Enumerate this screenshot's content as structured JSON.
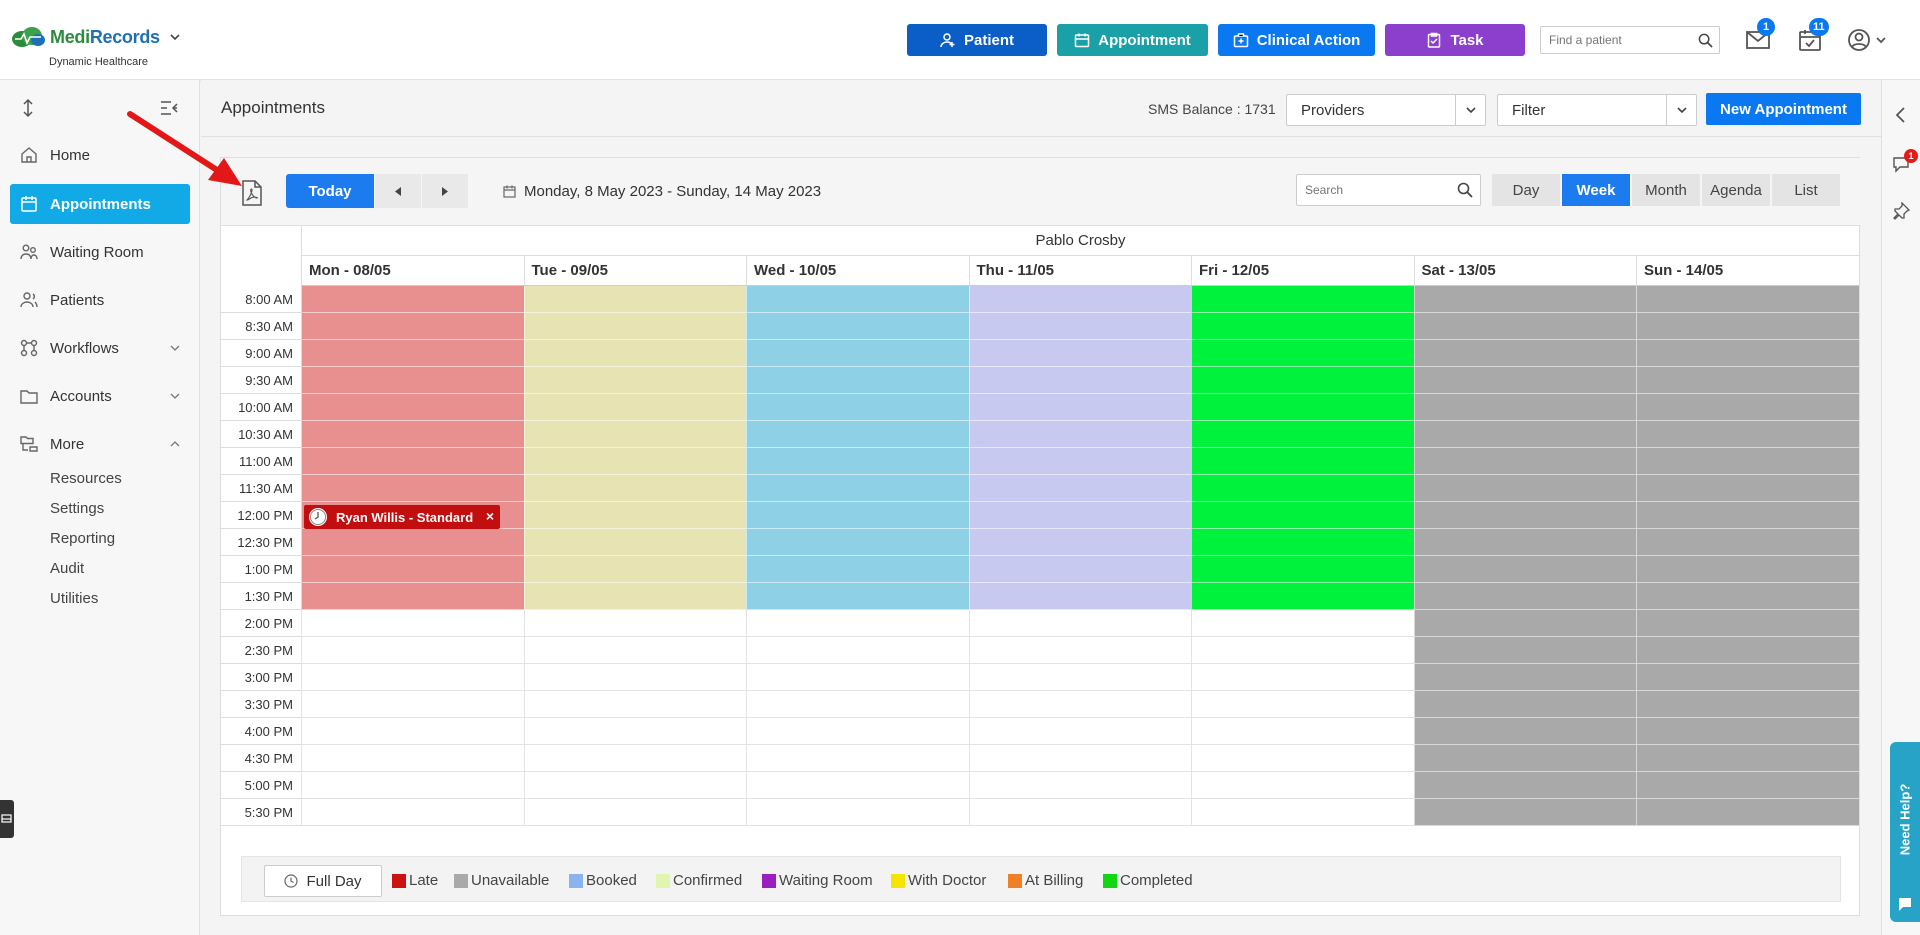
{
  "brand": {
    "name_a": "Medi",
    "name_b": "Records",
    "subtitle": "Dynamic Healthcare"
  },
  "header": {
    "buttons": {
      "patient": "Patient",
      "appointment": "Appointment",
      "clinical_action": "Clinical Action",
      "task": "Task"
    },
    "find_patient_placeholder": "Find a patient",
    "mail_badge": "1",
    "tasks_badge": "11"
  },
  "sidebar": {
    "items": [
      "Home",
      "Appointments",
      "Waiting Room",
      "Patients",
      "Workflows",
      "Accounts",
      "More"
    ],
    "more_sub": [
      "Resources",
      "Settings",
      "Reporting",
      "Audit",
      "Utilities"
    ]
  },
  "page": {
    "title": "Appointments",
    "sms_balance": "SMS Balance : 1731",
    "providers": "Providers",
    "filter": "Filter",
    "new_appointment": "New Appointment"
  },
  "toolbar": {
    "today": "Today",
    "date_range": "Monday, 8 May 2023 - Sunday, 14 May 2023",
    "search_placeholder": "Search",
    "views": [
      "Day",
      "Week",
      "Month",
      "Agenda",
      "List"
    ],
    "active_view": "Week"
  },
  "calendar": {
    "provider": "Pablo Crosby",
    "days": [
      {
        "label": "Mon - 08/05",
        "color": "#e89090",
        "slots_colored": 12
      },
      {
        "label": "Tue - 09/05",
        "color": "#e7e3b2",
        "slots_colored": 12
      },
      {
        "label": "Wed - 10/05",
        "color": "#8ed0e5",
        "slots_colored": 12
      },
      {
        "label": "Thu - 11/05",
        "color": "#c7c9f1",
        "slots_colored": 12
      },
      {
        "label": "Fri - 12/05",
        "color": "#00f23c",
        "slots_colored": 12
      },
      {
        "label": "Sat - 13/05",
        "color": "#a9a9a9",
        "slots_colored": 20
      },
      {
        "label": "Sun - 14/05",
        "color": "#a9a9a9",
        "slots_colored": 20
      }
    ],
    "times": [
      "8:00 AM",
      "8:30 AM",
      "9:00 AM",
      "9:30 AM",
      "10:00 AM",
      "10:30 AM",
      "11:00 AM",
      "11:30 AM",
      "12:00 PM",
      "12:30 PM",
      "1:00 PM",
      "1:30 PM",
      "2:00 PM",
      "2:30 PM",
      "3:00 PM",
      "3:30 PM",
      "4:00 PM",
      "4:30 PM",
      "5:00 PM",
      "5:30 PM"
    ],
    "appointment": {
      "label": "Ryan Willis - Standard",
      "close": "×"
    }
  },
  "legend": {
    "full_day": "Full Day",
    "items": [
      {
        "label": "Late",
        "color": "#cc1111"
      },
      {
        "label": "Unavailable",
        "color": "#a9a9a9"
      },
      {
        "label": "Booked",
        "color": "#8ab4f0"
      },
      {
        "label": "Confirmed",
        "color": "#e1f5b0"
      },
      {
        "label": "Waiting Room",
        "color": "#9b1fbf"
      },
      {
        "label": "With Doctor",
        "color": "#f5e400"
      },
      {
        "label": "At Billing",
        "color": "#f07f26"
      },
      {
        "label": "Completed",
        "color": "#11d611"
      }
    ]
  },
  "right_rail": {
    "chat_badge": "1",
    "help_label": "Need Help?"
  }
}
